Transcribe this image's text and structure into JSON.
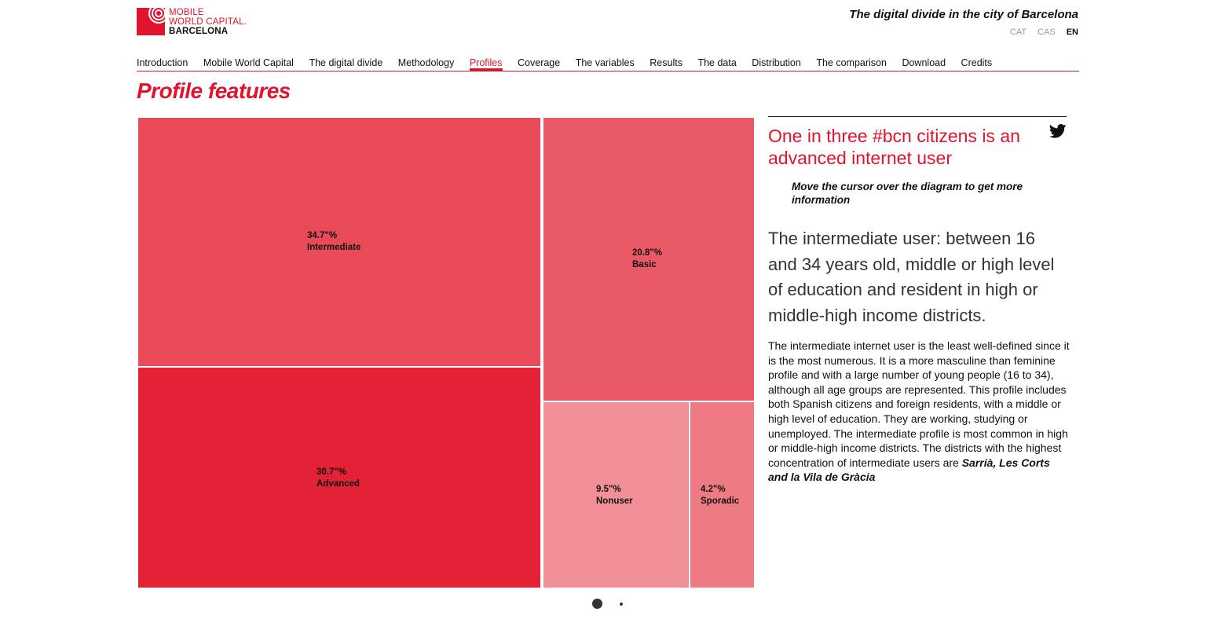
{
  "header": {
    "logo": {
      "line1": "MOBILE",
      "line2": "WORLD CAPITAL.",
      "line3": "BARCELONA"
    },
    "site_title": "The digital divide in the city of Barcelona",
    "languages": [
      {
        "label": "CAT",
        "active": false
      },
      {
        "label": "CAS",
        "active": false
      },
      {
        "label": "EN",
        "active": true
      }
    ]
  },
  "nav": {
    "items": [
      "Introduction",
      "Mobile World Capital",
      "The digital divide",
      "Methodology",
      "Profiles",
      "Coverage",
      "The variables",
      "Results",
      "The data",
      "Distribution",
      "The comparison",
      "Download",
      "Credits"
    ],
    "active": "Profiles"
  },
  "page_title": "Profile features",
  "treemap": {
    "cells": [
      {
        "value": "34.7\"%",
        "label": "Intermediate",
        "color": "#e84a58"
      },
      {
        "value": "30.7\"%",
        "label": "Advanced",
        "color": "#e32235"
      },
      {
        "value": "20.8\"%",
        "label": "Basic",
        "color": "#ea5a66"
      },
      {
        "value": "9.5\"%",
        "label": "Nonuser",
        "color": "#f19097"
      },
      {
        "value": "4.2\"%",
        "label": "Sporadic",
        "color": "#ee7a84"
      }
    ]
  },
  "side": {
    "tweet": "One in three #bcn citizens is an advanced internet user",
    "tweet_icon": "twitter-icon",
    "hint": "Move the cursor over the diagram to get more information",
    "lead": "The intermediate user: between 16 and 34 years old, middle or high level of education and resident in high or middle-high income districts.",
    "body": "The intermediate internet user is the least well-defined since it is the most numerous. It is a more masculine than feminine profile and with a large number of young people (16 to 34), although all age groups are represented. This profile includes both Spanish citizens and foreign residents, with a middle or high level of education. They are working, studying or unemployed. The intermediate profile is most common in high or middle-high income districts. The districts with the highest concentration of intermediate users are ",
    "body_bold": "Sarrià, Les Corts and la Vila de Gràcia"
  },
  "pager": {
    "pages": 2,
    "current": 1
  }
}
